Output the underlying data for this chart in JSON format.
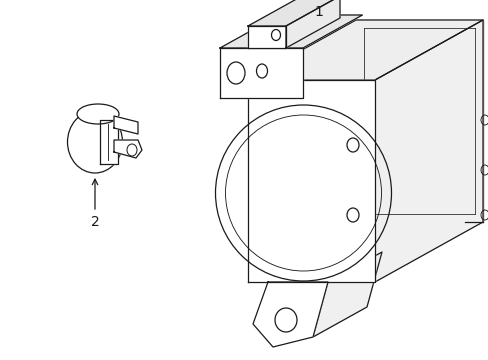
{
  "background_color": "#ffffff",
  "line_color": "#1a1a1a",
  "line_width": 0.9,
  "label1": "1",
  "label2": "2",
  "fig_width": 4.89,
  "fig_height": 3.6,
  "dpi": 100
}
